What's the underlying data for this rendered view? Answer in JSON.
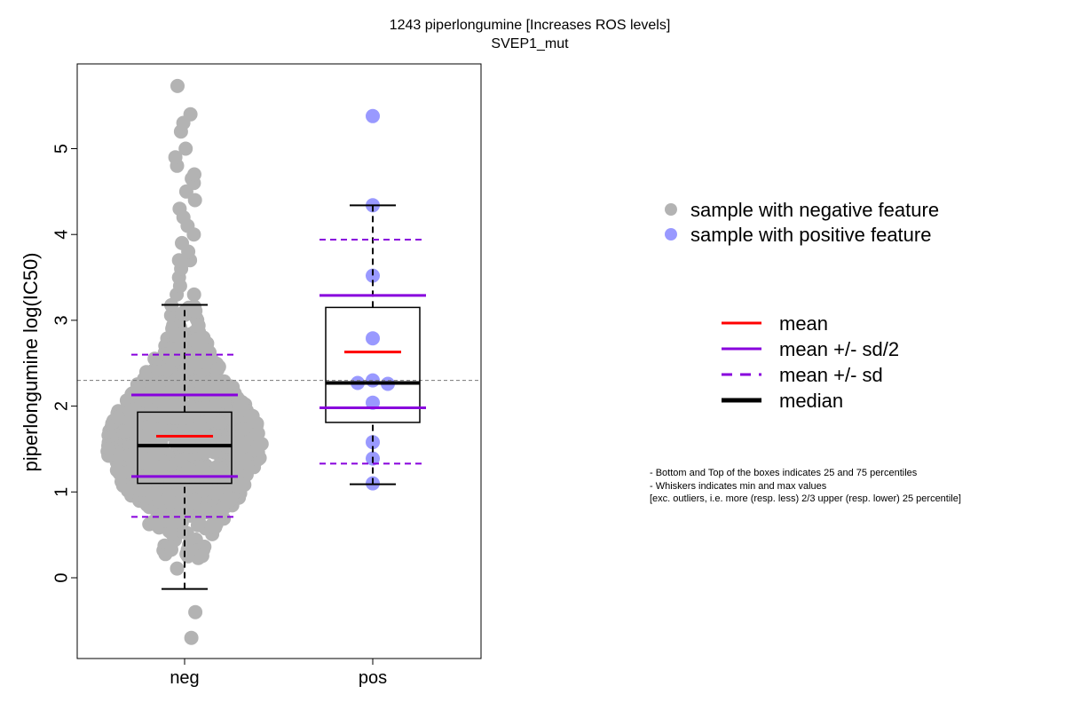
{
  "chart_data": {
    "type": "boxplot",
    "title": "1243 piperlongumine [Increases ROS levels]",
    "subtitle": "SVEP1_mut",
    "ylabel": "piperlongumine log(IC50)",
    "xlabel": "",
    "categories": [
      "neg",
      "pos"
    ],
    "ylim": [
      -0.95,
      5.95
    ],
    "yticks": [
      0,
      1,
      2,
      3,
      4,
      5
    ],
    "reference_line": 2.3,
    "colors": {
      "neg_points": "#b3b3b3",
      "pos_points": "#9999ff",
      "mean": "#ff0000",
      "sd": "#8800dd",
      "median": "#000000"
    },
    "groups": [
      {
        "name": "neg",
        "n_points_approx": 900,
        "min": -0.13,
        "q1": 1.1,
        "median": 1.54,
        "q3": 1.93,
        "max": 3.18,
        "mean": 1.65,
        "mean_minus_half_sd": 1.18,
        "mean_plus_half_sd": 2.13,
        "mean_minus_sd": 0.71,
        "mean_plus_sd": 2.6,
        "outliers_high": [
          3.3,
          3.3,
          3.4,
          3.5,
          3.6,
          3.7,
          3.7,
          3.8,
          3.9,
          4.0,
          4.1,
          4.2,
          4.3,
          4.4,
          4.5,
          4.6,
          4.65,
          4.7,
          4.8,
          4.9,
          5.0,
          5.2,
          5.3,
          5.4,
          5.73
        ],
        "outliers_low": [
          -0.4,
          -0.7
        ]
      },
      {
        "name": "pos",
        "points": [
          5.38,
          4.34,
          3.52,
          2.79,
          2.3,
          2.26,
          2.27,
          2.04,
          1.58,
          1.39,
          1.1
        ],
        "min": 1.09,
        "q1": 1.81,
        "median": 2.27,
        "q3": 3.15,
        "max": 4.34,
        "mean": 2.63,
        "mean_minus_half_sd": 1.98,
        "mean_plus_half_sd": 3.29,
        "mean_minus_sd": 1.33,
        "mean_plus_sd": 3.94,
        "outliers_high": [
          5.38
        ]
      }
    ],
    "legend_points": [
      {
        "label": "sample with negative feature",
        "color": "#b3b3b3"
      },
      {
        "label": "sample with positive feature",
        "color": "#9999ff"
      }
    ],
    "legend_lines": [
      {
        "label": "mean",
        "color": "#ff0000",
        "dash": false,
        "width": 3
      },
      {
        "label": "mean +/- sd/2",
        "color": "#8800dd",
        "dash": false,
        "width": 3
      },
      {
        "label": "mean +/- sd",
        "color": "#8800dd",
        "dash": true,
        "width": 3
      },
      {
        "label": "median",
        "color": "#000000",
        "dash": false,
        "width": 5
      }
    ],
    "notes": [
      "- Bottom and Top of the boxes indicates 25 and 75 percentiles",
      "- Whiskers indicates min and max values",
      "[exc. outliers, i.e. more (resp. less) 2/3 upper (resp. lower) 25 percentile]"
    ]
  }
}
